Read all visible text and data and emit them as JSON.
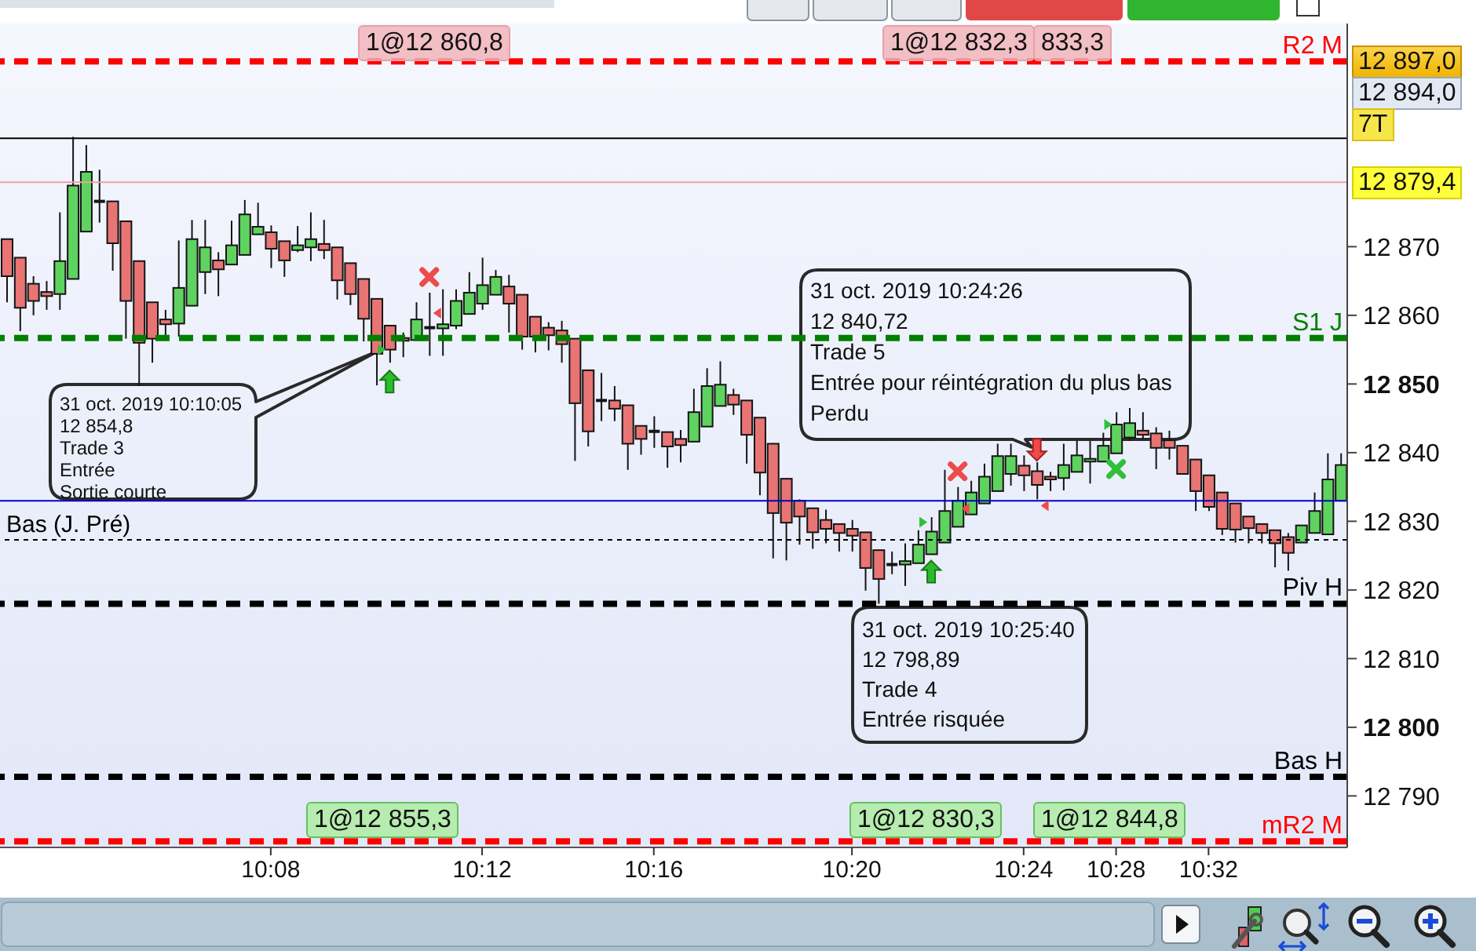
{
  "chart_data": {
    "type": "candlestick",
    "categories": [
      null,
      null,
      null,
      null,
      null,
      null,
      null,
      null,
      null,
      null,
      null,
      null,
      null,
      null,
      null,
      null,
      null,
      null,
      null,
      null,
      "10:08",
      null,
      null,
      null,
      null,
      null,
      null,
      null,
      null,
      null,
      null,
      null,
      null,
      null,
      null,
      null,
      "10:12",
      null,
      null,
      null,
      null,
      null,
      null,
      null,
      null,
      null,
      null,
      null,
      null,
      "10:16",
      null,
      null,
      null,
      null,
      null,
      null,
      null,
      null,
      null,
      null,
      null,
      null,
      null,
      null,
      "10:20",
      null,
      null,
      null,
      null,
      null,
      null,
      null,
      null,
      null,
      null,
      null,
      null,
      "10:24",
      null,
      null,
      null,
      null,
      null,
      null,
      "10:28",
      null,
      null,
      null,
      null,
      null,
      null,
      "10:32",
      null,
      null,
      null,
      null,
      null,
      null,
      null,
      null,
      null,
      null
    ],
    "ohlc": [
      [
        12871.1,
        12871.1,
        12861.9,
        12865.7
      ],
      [
        12868.4,
        12868.4,
        12857.7,
        12861.1
      ],
      [
        12864.6,
        12865.7,
        12860.0,
        12862.1
      ],
      [
        12863.4,
        12865.0,
        12860.8,
        12862.8
      ],
      [
        12863.1,
        12875.0,
        12860.8,
        12867.9
      ],
      [
        12865.3,
        12886.0,
        12865.3,
        12878.9
      ],
      [
        12872.2,
        12884.8,
        12872.2,
        12880.9
      ],
      [
        12876.6,
        12881.2,
        12873.5,
        12876.6
      ],
      [
        12876.6,
        12876.6,
        12866.5,
        12870.5
      ],
      [
        12873.7,
        12873.7,
        12856.6,
        12862.1
      ],
      [
        12867.9,
        12867.9,
        12849.7,
        12856.0
      ],
      [
        12861.9,
        12861.9,
        12853.1,
        12856.6
      ],
      [
        12859.4,
        12860.8,
        12856.9,
        12858.7
      ],
      [
        12858.8,
        12870.9,
        12856.9,
        12864.0
      ],
      [
        12861.4,
        12873.9,
        12861.4,
        12871.1
      ],
      [
        12866.3,
        12873.9,
        12863.1,
        12869.9
      ],
      [
        12868.0,
        12869.2,
        12862.8,
        12866.7
      ],
      [
        12867.4,
        12873.8,
        12867.4,
        12870.2
      ],
      [
        12868.8,
        12876.8,
        12868.8,
        12874.7
      ],
      [
        12871.8,
        12876.4,
        12871.8,
        12872.9
      ],
      [
        12872.1,
        12873.1,
        12866.9,
        12869.7
      ],
      [
        12870.8,
        12870.8,
        12865.6,
        12868.0
      ],
      [
        12869.5,
        12873.0,
        12869.2,
        12870.2
      ],
      [
        12869.9,
        12875.0,
        12867.9,
        12871.1
      ],
      [
        12870.4,
        12873.9,
        12868.2,
        12869.5
      ],
      [
        12869.9,
        12869.9,
        12862.3,
        12865.1
      ],
      [
        12867.6,
        12867.6,
        12861.5,
        12863.1
      ],
      [
        12865.3,
        12865.3,
        12856.2,
        12859.5
      ],
      [
        12862.4,
        12862.4,
        12849.8,
        12854.4
      ],
      [
        12858.5,
        12858.5,
        12853.1,
        12855.0
      ],
      [
        12856.7,
        12857.5,
        12853.9,
        12856.3
      ],
      [
        12856.4,
        12861.9,
        12856.4,
        12859.4
      ],
      [
        12858.2,
        12863.3,
        12854.1,
        12858.2
      ],
      [
        12858.1,
        12863.8,
        12854.1,
        12858.7
      ],
      [
        12858.5,
        12863.8,
        12858.0,
        12862.1
      ],
      [
        12860.2,
        12866.3,
        12860.2,
        12863.3
      ],
      [
        12861.7,
        12868.4,
        12860.8,
        12864.4
      ],
      [
        12863.0,
        12866.6,
        12863.0,
        12865.6
      ],
      [
        12864.2,
        12865.9,
        12857.5,
        12861.7
      ],
      [
        12863.0,
        12863.0,
        12855.0,
        12856.9
      ],
      [
        12859.8,
        12859.8,
        12854.6,
        12856.9
      ],
      [
        12858.2,
        12859.0,
        12854.9,
        12857.1
      ],
      [
        12857.8,
        12859.2,
        12853.1,
        12855.8
      ],
      [
        12856.6,
        12856.6,
        12838.8,
        12847.2
      ],
      [
        12852.0,
        12852.0,
        12840.9,
        12843.1
      ],
      [
        12847.6,
        12851.6,
        12844.6,
        12847.6
      ],
      [
        12847.6,
        12849.7,
        12844.6,
        12846.4
      ],
      [
        12846.9,
        12846.9,
        12837.5,
        12841.3
      ],
      [
        12843.9,
        12843.9,
        12839.7,
        12842.0
      ],
      [
        12843.1,
        12845.3,
        12840.7,
        12843.1
      ],
      [
        12843.0,
        12843.0,
        12837.8,
        12840.9
      ],
      [
        12842.0,
        12843.3,
        12838.6,
        12841.1
      ],
      [
        12841.6,
        12849.3,
        12841.6,
        12845.9
      ],
      [
        12843.8,
        12852.3,
        12843.8,
        12849.7
      ],
      [
        12846.8,
        12853.3,
        12846.8,
        12849.9
      ],
      [
        12848.4,
        12849.3,
        12845.5,
        12847.0
      ],
      [
        12847.6,
        12847.6,
        12838.4,
        12842.6
      ],
      [
        12845.1,
        12845.1,
        12833.8,
        12837.1
      ],
      [
        12841.3,
        12841.3,
        12824.6,
        12831.2
      ],
      [
        12836.2,
        12836.2,
        12824.3,
        12829.8
      ],
      [
        12833.0,
        12833.2,
        12826.6,
        12830.7
      ],
      [
        12831.9,
        12831.9,
        12826.0,
        12828.4
      ],
      [
        12830.2,
        12831.7,
        12826.8,
        12828.9
      ],
      [
        12829.6,
        12829.6,
        12825.6,
        12828.3
      ],
      [
        12828.9,
        12830.2,
        12825.6,
        12827.9
      ],
      [
        12828.4,
        12828.4,
        12819.9,
        12823.2
      ],
      [
        12825.8,
        12825.8,
        12818.0,
        12821.6
      ],
      [
        12823.7,
        12825.6,
        12822.3,
        12823.7
      ],
      [
        12823.7,
        12826.8,
        12820.6,
        12824.2
      ],
      [
        12823.9,
        12828.7,
        12823.9,
        12826.6
      ],
      [
        12825.2,
        12830.6,
        12825.2,
        12828.5
      ],
      [
        12826.9,
        12837.5,
        12826.9,
        12831.5
      ],
      [
        12829.2,
        12835.0,
        12829.2,
        12833.0
      ],
      [
        12831.0,
        12835.9,
        12831.0,
        12834.2
      ],
      [
        12832.6,
        12838.4,
        12832.6,
        12836.5
      ],
      [
        12834.4,
        12841.3,
        12834.4,
        12839.5
      ],
      [
        12836.9,
        12841.3,
        12835.2,
        12839.5
      ],
      [
        12838.1,
        12839.6,
        12834.4,
        12836.7
      ],
      [
        12837.3,
        12838.6,
        12833.2,
        12835.3
      ],
      [
        12836.5,
        12837.2,
        12834.4,
        12836.1
      ],
      [
        12836.3,
        12841.3,
        12834.5,
        12838.2
      ],
      [
        12837.2,
        12841.7,
        12837.2,
        12839.6
      ],
      [
        12838.7,
        12841.7,
        12835.5,
        12839.1
      ],
      [
        12838.7,
        12842.9,
        12838.7,
        12841.0
      ],
      [
        12839.9,
        12845.9,
        12839.9,
        12844.1
      ],
      [
        12842.2,
        12846.5,
        12841.7,
        12844.3
      ],
      [
        12843.2,
        12845.9,
        12842.0,
        12842.6
      ],
      [
        12842.8,
        12843.7,
        12837.6,
        12840.7
      ],
      [
        12841.8,
        12843.2,
        12839.0,
        12840.7
      ],
      [
        12841.0,
        12841.0,
        12836.9,
        12836.9
      ],
      [
        12839.0,
        12839.0,
        12831.5,
        12834.4
      ],
      [
        12836.7,
        12836.7,
        12831.5,
        12832.1
      ],
      [
        12834.2,
        12834.2,
        12828.0,
        12828.9
      ],
      [
        12832.6,
        12832.6,
        12826.9,
        12828.8
      ],
      [
        12830.7,
        12830.7,
        12826.8,
        12829.0
      ],
      [
        12829.6,
        12829.6,
        12826.8,
        12828.3
      ],
      [
        12828.7,
        12828.7,
        12823.3,
        12826.8
      ],
      [
        12827.7,
        12828.3,
        12822.8,
        12825.4
      ],
      [
        12826.9,
        12829.4,
        12826.9,
        12829.4
      ],
      [
        12828.3,
        12834.2,
        12828.3,
        12831.5
      ],
      [
        12828.1,
        12839.9,
        12828.1,
        12836.1
      ],
      [
        12833.0,
        12839.9,
        12833.0,
        12838.2
      ]
    ],
    "ylim": [
      12782.5,
      12902.5
    ],
    "yticks": [
      {
        "value": 12790,
        "label": "12 790"
      },
      {
        "value": 12800,
        "label": "12 800"
      },
      {
        "value": 12810,
        "label": "12 810"
      },
      {
        "value": 12820,
        "label": "12 820"
      },
      {
        "value": 12830,
        "label": "12 830"
      },
      {
        "value": 12840,
        "label": "12 840"
      },
      {
        "value": 12850,
        "label": "12 850"
      },
      {
        "value": 12860,
        "label": "12 860"
      },
      {
        "value": 12870,
        "label": "12 870"
      }
    ],
    "ref_lines": [
      {
        "axis": "y",
        "value": 12897,
        "label": "R2 M",
        "color": "#ff0000",
        "line_style": "dashed"
      },
      {
        "axis": "y",
        "value": 12885.8,
        "color": "#000000",
        "line_style": "solid"
      },
      {
        "axis": "y",
        "value": 12879.4,
        "color": "#f0a0a0",
        "line_style": "solid"
      },
      {
        "axis": "y",
        "value": 12856.7,
        "label": "S1 J",
        "color": "#008000",
        "line_style": "dashed"
      },
      {
        "axis": "y",
        "value": 12833,
        "color": "#0000cc",
        "line_style": "solid"
      },
      {
        "axis": "y",
        "value": 12827.3,
        "label": "Bas (J. Pré)",
        "color": "#000000",
        "line_style": "dotted"
      },
      {
        "axis": "y",
        "value": 12818,
        "label": "Piv H",
        "color": "#000000",
        "line_style": "dashed"
      },
      {
        "axis": "y",
        "value": 12792.8,
        "label": "Bas H",
        "color": "#000000",
        "line_style": "dashed"
      },
      {
        "axis": "y",
        "value": 12783.4,
        "label": "mR2 M",
        "color": "#ff0000",
        "line_style": "dashed"
      }
    ],
    "annotations": [
      "1@12 860,8",
      "1@12 832,3",
      "833,3",
      "1@12 855,3",
      "1@12 830,3",
      "1@12 844,8",
      "31 oct. 2019 10:10:05\n12 854,8\nTrade 3\nEntrée\nSortie courte",
      "31 oct. 2019 10:24:26\n12 840,72\nTrade 5\nEntrée pour réintégration du plus bas\nPerdu",
      "31 oct. 2019 10:25:40\n12 798,89\nTrade 4\nEntrée risquée",
      "12 897,0",
      "12 894,0",
      "7T",
      "12 879,4"
    ]
  }
}
